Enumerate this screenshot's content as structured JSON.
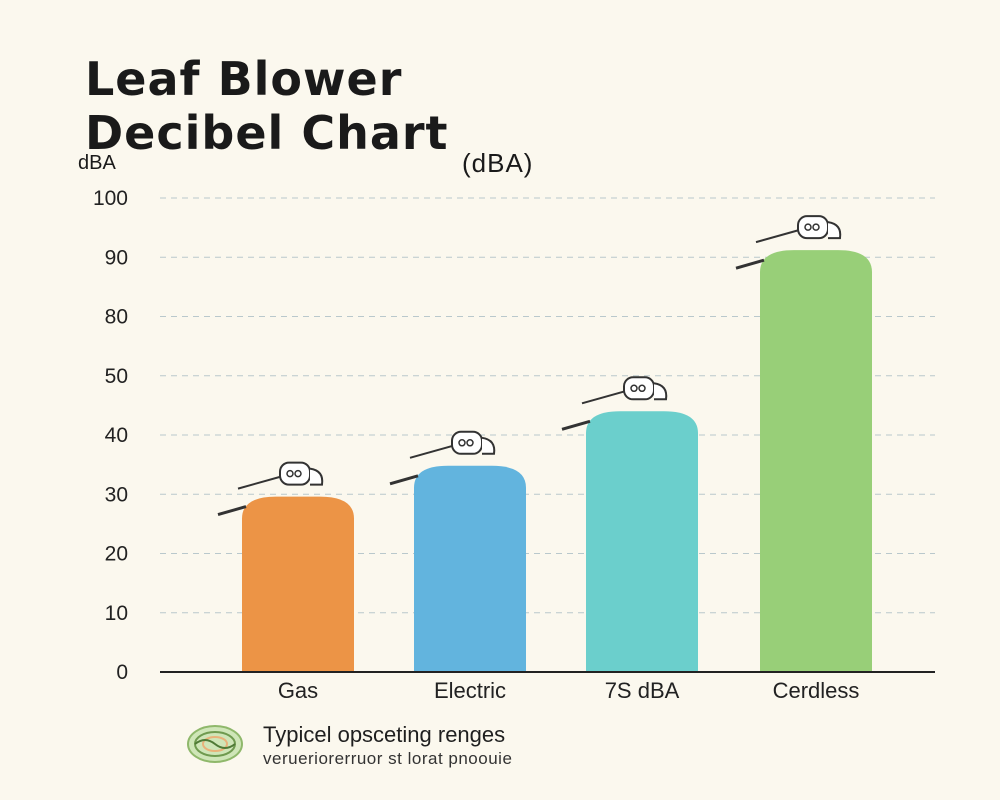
{
  "chart_data": {
    "type": "bar",
    "title_lines": [
      "Leaf Blower",
      "Decibel Chart"
    ],
    "subtitle": "(dBA)",
    "ylabel": "dBA",
    "xlabel": "",
    "y_ticks": [
      "100",
      "90",
      "80",
      "50",
      "40",
      "30",
      "20",
      "10",
      "0"
    ],
    "categories": [
      "Gas",
      "Electric",
      "7S dBA",
      "Cerdless"
    ],
    "values": [
      37,
      43.5,
      55,
      89
    ],
    "ylim": [
      0,
      100
    ],
    "grid": true,
    "colors": [
      "#ec9446",
      "#62b4de",
      "#6bcfcc",
      "#98cf78"
    ]
  },
  "legend": {
    "icon": "sound-wave-icon",
    "main": "Typicel opsceting renges",
    "sub": "verueriorerruor st lorat pnoouie"
  }
}
